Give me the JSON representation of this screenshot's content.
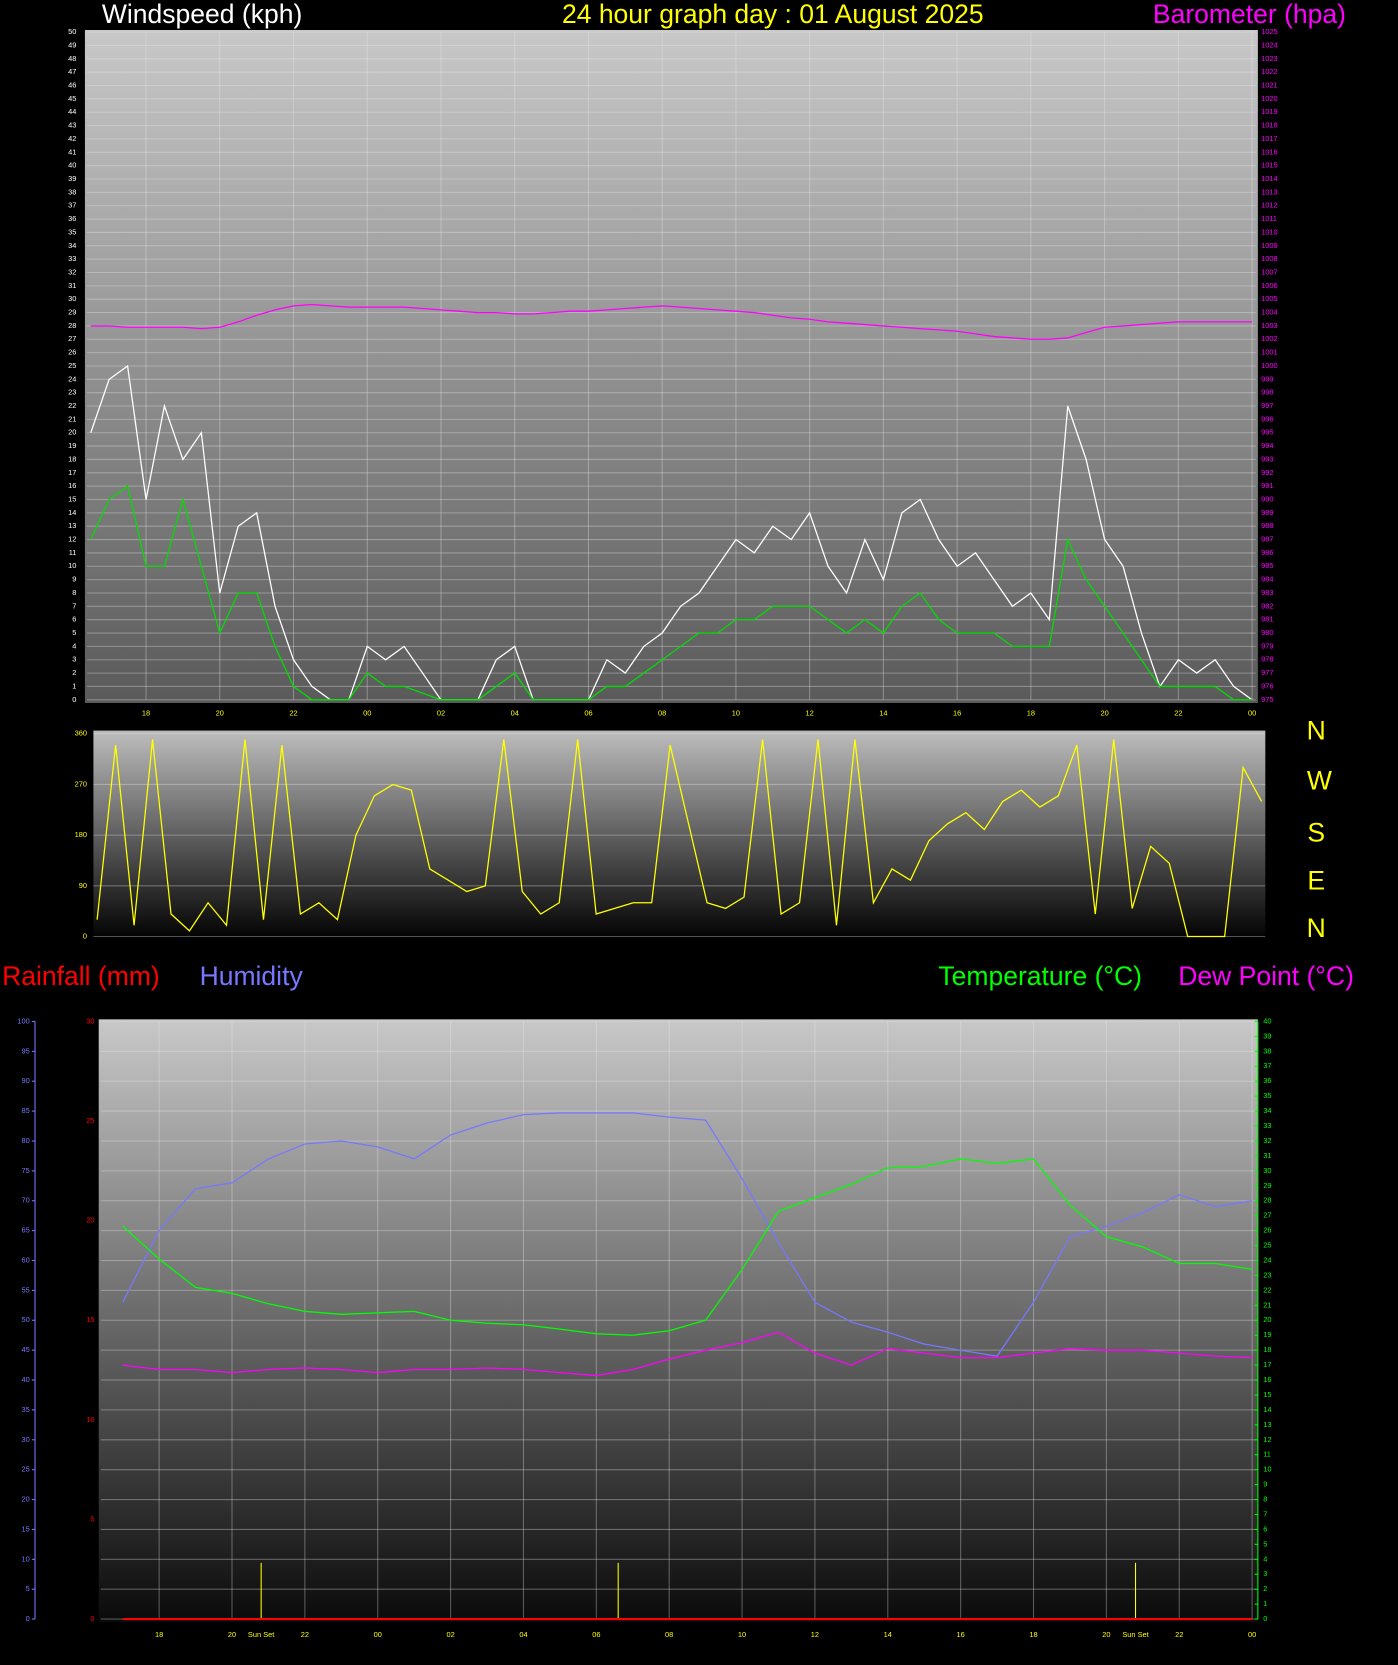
{
  "chart_data": [
    {
      "type": "line",
      "title": "24 hour graph day : 01 August 2025",
      "y_label": "Windspeed (kph)",
      "y2_label": "Barometer (hpa)",
      "grid": true,
      "x": [
        16.5,
        17,
        17.5,
        18,
        18.5,
        19,
        19.5,
        20,
        20.5,
        21,
        21.5,
        22,
        22.5,
        23,
        23.5,
        24,
        24.5,
        25,
        25.5,
        26,
        26.5,
        27,
        27.5,
        28,
        28.5,
        29,
        29.5,
        30,
        30.5,
        31,
        31.5,
        32,
        32.5,
        33,
        33.5,
        34,
        34.5,
        35,
        35.5,
        36,
        36.5,
        37,
        37.5,
        38,
        38.5,
        39,
        39.5,
        40,
        40.5,
        41,
        41.5,
        42,
        42.5,
        43,
        43.5,
        44,
        44.5,
        45,
        45.5,
        46,
        46.5,
        47,
        47.5,
        48
      ],
      "xlim": [
        16.4,
        48.1
      ],
      "xticks": [
        18,
        20,
        22,
        {
          "value": 24,
          "label": "00"
        },
        {
          "value": 26,
          "label": "02"
        },
        {
          "value": 28,
          "label": "04"
        },
        {
          "value": 30,
          "label": "06"
        },
        {
          "value": 32,
          "label": "08"
        },
        {
          "value": 34,
          "label": "10"
        },
        {
          "value": 36,
          "label": "12"
        },
        {
          "value": 38,
          "label": "14"
        },
        {
          "value": 40,
          "label": "16"
        },
        {
          "value": 42,
          "label": "18"
        },
        {
          "value": 44,
          "label": "20"
        },
        {
          "value": 46,
          "label": "22"
        },
        {
          "value": 48,
          "label": "00"
        }
      ],
      "ylim": [
        0,
        50
      ],
      "yticks": [
        0,
        1,
        2,
        3,
        4,
        5,
        6,
        7,
        8,
        9,
        10,
        11,
        12,
        13,
        14,
        15,
        16,
        17,
        18,
        19,
        20,
        21,
        22,
        23,
        24,
        25,
        26,
        27,
        28,
        29,
        30,
        31,
        32,
        33,
        34,
        35,
        36,
        37,
        38,
        39,
        40,
        41,
        42,
        43,
        44,
        45,
        46,
        47,
        48,
        49,
        50
      ],
      "y2lim": [
        975,
        1025
      ],
      "y2ticks": [
        975,
        976,
        977,
        978,
        979,
        980,
        981,
        982,
        983,
        984,
        985,
        986,
        987,
        988,
        989,
        990,
        991,
        992,
        993,
        994,
        995,
        996,
        997,
        998,
        999,
        1000,
        1001,
        1002,
        1003,
        1004,
        1005,
        1006,
        1007,
        1008,
        1009,
        1010,
        1011,
        1012,
        1013,
        1014,
        1015,
        1016,
        1017,
        1018,
        1019,
        1020,
        1021,
        1022,
        1023,
        1024,
        1025
      ],
      "series": [
        {
          "color": "#ffffff",
          "values": [
            20,
            24,
            25,
            15,
            22,
            18,
            20,
            8,
            13,
            14,
            7,
            3,
            1,
            0,
            0,
            4,
            3,
            4,
            2,
            0,
            0,
            0,
            3,
            4,
            0,
            0,
            0,
            0,
            3,
            2,
            4,
            5,
            7,
            8,
            10,
            12,
            11,
            13,
            12,
            14,
            10,
            8,
            12,
            9,
            14,
            15,
            12,
            10,
            11,
            9,
            7,
            8,
            6,
            22,
            18,
            12,
            10,
            5,
            1,
            3,
            2,
            3,
            1,
            0
          ]
        },
        {
          "color": "#00dd00",
          "values": [
            12,
            15,
            16,
            10,
            10,
            15,
            10,
            5,
            8,
            8,
            4,
            1,
            0,
            0,
            0,
            2,
            1,
            1,
            0.5,
            0,
            0,
            0,
            1,
            2,
            0,
            0,
            0,
            0,
            1,
            1,
            2,
            3,
            4,
            5,
            5,
            6,
            6,
            7,
            7,
            7,
            6,
            5,
            6,
            5,
            7,
            8,
            6,
            5,
            5,
            5,
            4,
            4,
            4,
            12,
            9,
            7,
            5,
            3,
            1,
            1,
            1,
            1,
            0,
            0
          ]
        },
        {
          "color": "#ff00ff",
          "axis": "y2",
          "values": [
            1003.0,
            1003.0,
            1002.9,
            1002.9,
            1002.9,
            1002.9,
            1002.8,
            1002.9,
            1003.3,
            1003.8,
            1004.2,
            1004.5,
            1004.6,
            1004.5,
            1004.4,
            1004.4,
            1004.4,
            1004.4,
            1004.3,
            1004.2,
            1004.1,
            1004.0,
            1004.0,
            1003.9,
            1003.9,
            1004.0,
            1004.1,
            1004.1,
            1004.2,
            1004.3,
            1004.4,
            1004.5,
            1004.4,
            1004.3,
            1004.2,
            1004.1,
            1004.0,
            1003.8,
            1003.6,
            1003.5,
            1003.3,
            1003.2,
            1003.1,
            1003.0,
            1002.9,
            1002.8,
            1002.7,
            1002.6,
            1002.4,
            1002.2,
            1002.1,
            1002.0,
            1002.0,
            1002.1,
            1002.5,
            1002.9,
            1003.0,
            1003.1,
            1003.2,
            1003.3,
            1003.3,
            1003.3,
            1003.3,
            1003.3
          ]
        }
      ]
    },
    {
      "type": "line",
      "compass_labels": [
        "N",
        "W",
        "S",
        "E",
        "N"
      ],
      "grid": true,
      "x": [
        16.5,
        17,
        17.5,
        18,
        18.5,
        19,
        19.5,
        20,
        20.5,
        21,
        21.5,
        22,
        22.5,
        23,
        23.5,
        24,
        24.5,
        25,
        25.5,
        26,
        26.5,
        27,
        27.5,
        28,
        28.5,
        29,
        29.5,
        30,
        30.5,
        31,
        31.5,
        32,
        32.5,
        33,
        33.5,
        34,
        34.5,
        35,
        35.5,
        36,
        36.5,
        37,
        37.5,
        38,
        38.5,
        39,
        39.5,
        40,
        40.5,
        41,
        41.5,
        42,
        42.5,
        43,
        43.5,
        44,
        44.5,
        45,
        45.5,
        46,
        46.5,
        47,
        47.5,
        48
      ],
      "xlim": [
        16.4,
        48.1
      ],
      "ylim": [
        0,
        360
      ],
      "yticks": [
        0,
        90,
        180,
        270,
        360
      ],
      "series": [
        {
          "color": "#ffff00",
          "values": [
            30,
            340,
            20,
            350,
            40,
            10,
            60,
            20,
            350,
            30,
            340,
            40,
            60,
            30,
            180,
            250,
            270,
            260,
            120,
            100,
            80,
            90,
            350,
            80,
            40,
            60,
            350,
            40,
            50,
            60,
            60,
            340,
            200,
            60,
            50,
            70,
            350,
            40,
            60,
            350,
            20,
            350,
            60,
            120,
            100,
            170,
            200,
            220,
            190,
            240,
            260,
            230,
            250,
            340,
            40,
            350,
            50,
            160,
            130,
            0,
            0,
            0,
            300,
            240
          ]
        }
      ]
    },
    {
      "type": "line",
      "grid": true,
      "x": [
        17,
        18,
        19,
        20,
        21,
        22,
        23,
        24,
        25,
        26,
        27,
        28,
        29,
        30,
        31,
        32,
        33,
        34,
        35,
        36,
        37,
        38,
        39,
        40,
        41,
        42,
        43,
        44,
        45,
        46,
        47,
        48
      ],
      "xlim": [
        16.4,
        48.1
      ],
      "xticks": [
        18,
        20,
        22,
        {
          "value": 24,
          "label": "00"
        },
        {
          "value": 26,
          "label": "02"
        },
        {
          "value": 28,
          "label": "04"
        },
        {
          "value": 30,
          "label": "06"
        },
        {
          "value": 32,
          "label": "08"
        },
        {
          "value": 34,
          "label": "10"
        },
        {
          "value": 36,
          "label": "12"
        },
        {
          "value": 38,
          "label": "14"
        },
        {
          "value": 40,
          "label": "16"
        },
        {
          "value": 42,
          "label": "18"
        },
        {
          "value": 44,
          "label": "20"
        },
        {
          "value": 46,
          "label": "22"
        },
        {
          "value": 48,
          "label": "00"
        }
      ],
      "ylim": [
        0,
        30
      ],
      "yticks": [
        0,
        5,
        10,
        15,
        20,
        25,
        30
      ],
      "y3lim": [
        0,
        100
      ],
      "y3ticks": [
        0,
        5,
        10,
        15,
        20,
        25,
        30,
        35,
        40,
        45,
        50,
        55,
        60,
        65,
        70,
        75,
        80,
        85,
        90,
        95,
        100
      ],
      "y2lim": [
        0,
        40
      ],
      "y2ticks": [
        0,
        1,
        2,
        3,
        4,
        5,
        6,
        7,
        8,
        9,
        10,
        11,
        12,
        13,
        14,
        15,
        16,
        17,
        18,
        19,
        20,
        21,
        22,
        23,
        24,
        25,
        26,
        27,
        28,
        29,
        30,
        31,
        32,
        33,
        34,
        35,
        36,
        37,
        38,
        39,
        40
      ],
      "markers": [
        {
          "x": 20.8,
          "label": "Sun Set"
        },
        {
          "x": 30.6
        },
        {
          "x": 44.8,
          "label": "Sun Set"
        }
      ],
      "series": [
        {
          "name": "Rainfall (mm)",
          "color": "#ff0000",
          "values": [
            0,
            0,
            0,
            0,
            0,
            0,
            0,
            0,
            0,
            0,
            0,
            0,
            0,
            0,
            0,
            0,
            0,
            0,
            0,
            0,
            0,
            0,
            0,
            0,
            0,
            0,
            0,
            0,
            0,
            0,
            0,
            0
          ]
        },
        {
          "name": "Humidity",
          "color": "#7777ff",
          "axis": "y3",
          "values": [
            53,
            65,
            72,
            73,
            77,
            79.5,
            80,
            79,
            77,
            81,
            83,
            84.4,
            84.7,
            84.7,
            84.7,
            84,
            83.5,
            73.7,
            63,
            53,
            49.7,
            48,
            46,
            45,
            44,
            53,
            64,
            65.7,
            68,
            71,
            69,
            70
          ]
        },
        {
          "name": "Temperature (°C)",
          "color": "#00ff00",
          "axis": "y2",
          "values": [
            26.3,
            24.1,
            22.2,
            21.8,
            21.1,
            20.6,
            20.4,
            20.5,
            20.6,
            20.0,
            19.8,
            19.7,
            19.4,
            19.1,
            19.0,
            19.3,
            20.0,
            23.4,
            27.3,
            28.2,
            29.1,
            30.2,
            30.3,
            30.8,
            30.5,
            30.8,
            27.7,
            25.6,
            24.9,
            23.8,
            23.8,
            23.4
          ]
        },
        {
          "name": "Dew Point (°C)",
          "color": "#ff00ff",
          "axis": "y2",
          "values": [
            17.0,
            16.7,
            16.7,
            16.5,
            16.7,
            16.8,
            16.7,
            16.5,
            16.7,
            16.7,
            16.8,
            16.7,
            16.5,
            16.3,
            16.7,
            17.4,
            18.0,
            18.5,
            19.2,
            17.8,
            17.0,
            18.1,
            17.8,
            17.5,
            17.5,
            17.8,
            18.1,
            18.0,
            18.0,
            17.8,
            17.6,
            17.5
          ]
        }
      ]
    }
  ]
}
